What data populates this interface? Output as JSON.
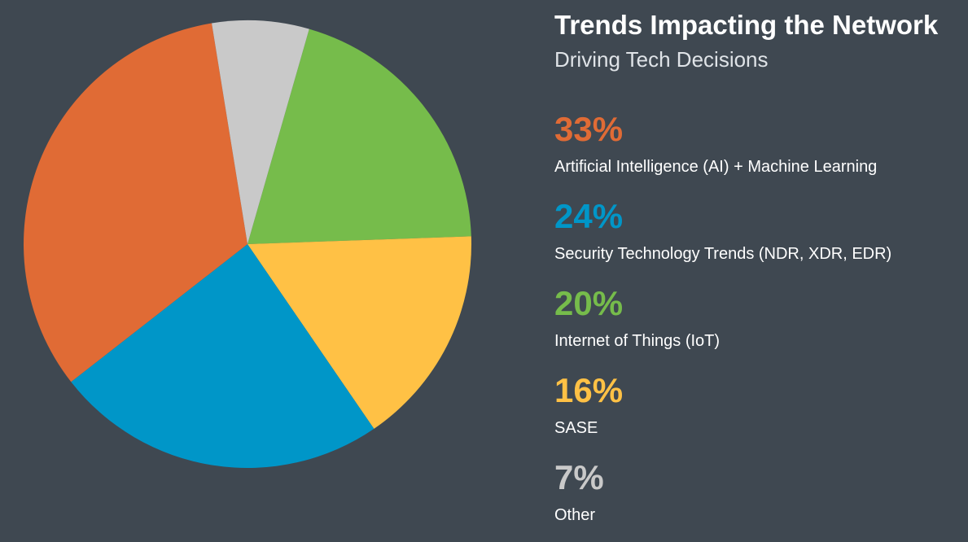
{
  "header": {
    "title": "Trends Impacting the Network",
    "subtitle": "Driving Tech Decisions"
  },
  "colors": {
    "background": "#3f4851",
    "ai_ml": "#e06b35",
    "security": "#0096c8",
    "iot": "#76bc4b",
    "sase": "#ffc145",
    "other": "#c9c9c9"
  },
  "legend": [
    {
      "percent": "33%",
      "label": "Artificial Intelligence (AI) + Machine Learning",
      "color": "#e06b35"
    },
    {
      "percent": "24%",
      "label": "Security Technology Trends (NDR, XDR, EDR)",
      "color": "#0096c8"
    },
    {
      "percent": "20%",
      "label": "Internet of Things (IoT)",
      "color": "#76bc4b"
    },
    {
      "percent": "16%",
      "label": "SASE",
      "color": "#ffc145"
    },
    {
      "percent": "7%",
      "label": "Other",
      "color": "#c9c9c9"
    }
  ],
  "chart_data": {
    "type": "pie",
    "title": "Trends Impacting the Network",
    "subtitle": "Driving Tech Decisions",
    "slices": [
      {
        "label": "Artificial Intelligence (AI) + Machine Learning",
        "value": 33,
        "color": "#e06b35"
      },
      {
        "label": "Security Technology Trends (NDR, XDR, EDR)",
        "value": 24,
        "color": "#0096c8"
      },
      {
        "label": "Internet of Things (IoT)",
        "value": 20,
        "color": "#76bc4b"
      },
      {
        "label": "SASE",
        "value": 16,
        "color": "#ffc145"
      },
      {
        "label": "Other",
        "value": 7,
        "color": "#c9c9c9"
      }
    ],
    "legend_position": "right"
  }
}
